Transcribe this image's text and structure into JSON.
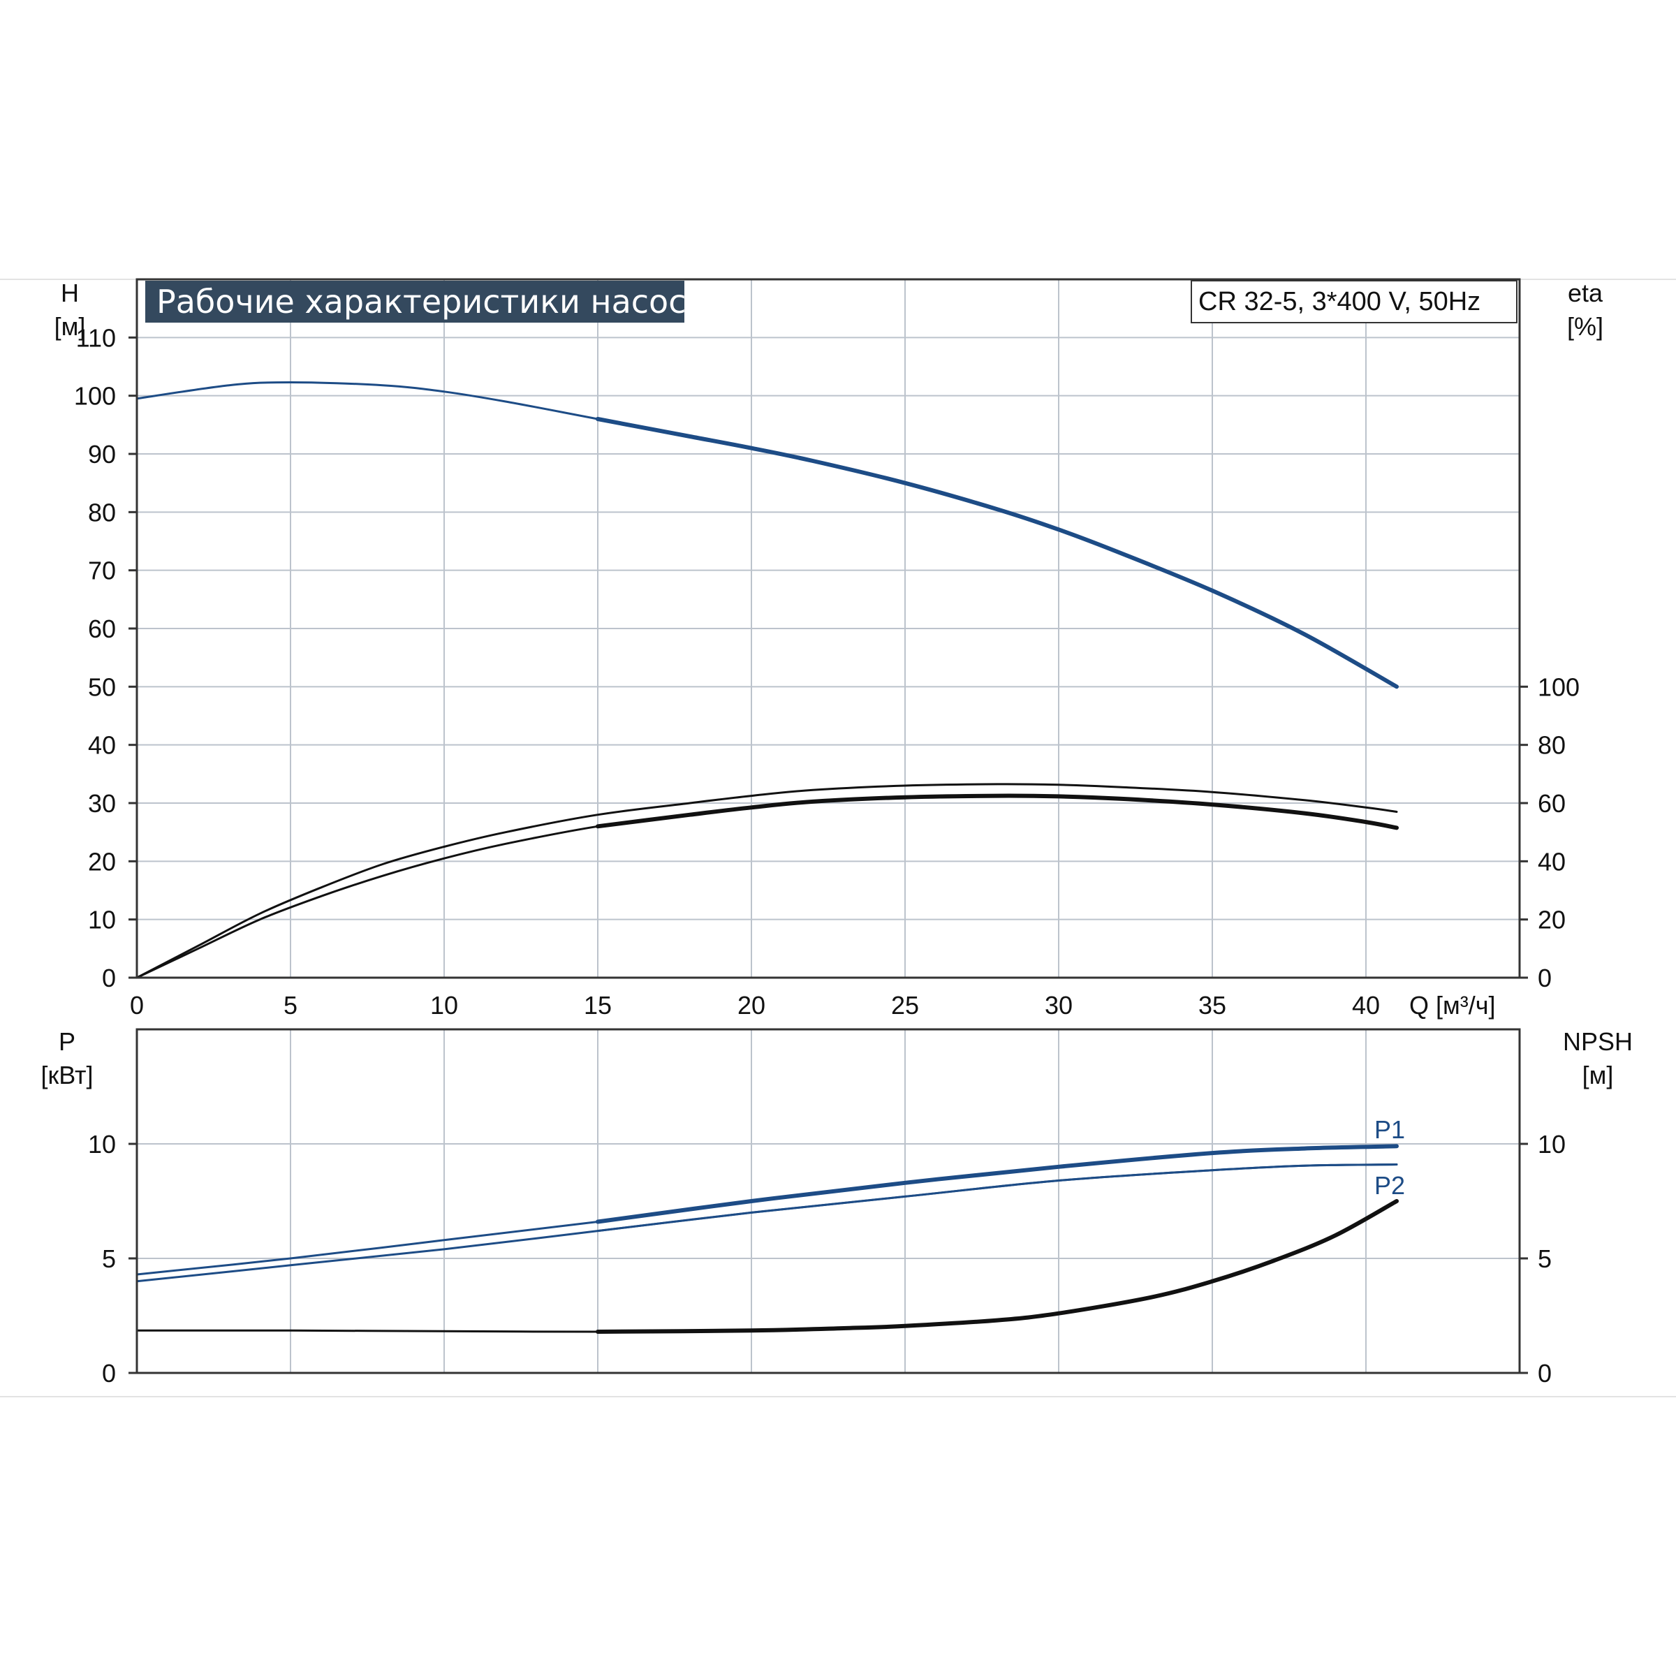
{
  "colors": {
    "grid": "#bcc3cc",
    "frame": "#333333",
    "head_curve": "#1d4c86",
    "power_curve": "#1d4c86",
    "efficiency_curve": "#111111",
    "npsh_curve": "#111111",
    "title_bg": "#34495e",
    "title_text": "#ffffff"
  },
  "chart_data": [
    {
      "type": "line",
      "title": "Рабочие характеристики насоса",
      "model_label": "CR 32-5, 3*400 V, 50Hz",
      "y_left_label": "H",
      "y_left_unit": "[м]",
      "y_right_label": "eta",
      "y_right_unit": "[%]",
      "x_label": "Q [м³/ч]",
      "xlim": [
        0,
        45
      ],
      "x_ticks": [
        0,
        5,
        10,
        15,
        20,
        25,
        30,
        35,
        40
      ],
      "ylim": [
        0,
        120
      ],
      "y_ticks": [
        0,
        10,
        20,
        30,
        40,
        50,
        60,
        70,
        80,
        90,
        100,
        110
      ],
      "y2lim": [
        0,
        240
      ],
      "y2_ticks": [
        0,
        20,
        40,
        60,
        80,
        100
      ],
      "grid": true,
      "series": [
        {
          "key": "head",
          "axis": "left",
          "x": [
            0,
            3,
            5,
            8,
            10,
            12,
            15,
            18,
            20,
            22,
            25,
            28,
            30,
            32,
            35,
            38,
            41
          ],
          "values": [
            99.5,
            101.8,
            102.3,
            101.8,
            100.7,
            99.0,
            96.0,
            93.0,
            91.0,
            88.8,
            85.0,
            80.5,
            77.0,
            73.0,
            66.5,
            59.0,
            50.0
          ]
        },
        {
          "key": "efficiency",
          "axis": "right",
          "x": [
            0,
            2,
            4,
            6,
            8,
            10,
            12,
            15,
            18,
            20,
            22,
            25,
            28,
            30,
            32,
            35,
            38,
            40,
            41
          ],
          "values": [
            0,
            10,
            20,
            28,
            35,
            41,
            46,
            52,
            56,
            58.5,
            60.5,
            62,
            62.5,
            62.3,
            61.5,
            59.5,
            56.5,
            53.5,
            51.5
          ]
        },
        {
          "key": "efficiency_upper",
          "axis": "right",
          "x": [
            0,
            2,
            4,
            6,
            8,
            10,
            12,
            15,
            18,
            20,
            22,
            25,
            28,
            30,
            32,
            35,
            38,
            40,
            41
          ],
          "values": [
            0,
            11,
            22,
            31,
            39,
            45,
            50,
            56,
            60,
            62.5,
            64.5,
            66,
            66.5,
            66.3,
            65.5,
            63.8,
            61,
            58.5,
            57
          ]
        }
      ]
    },
    {
      "type": "line",
      "y_left_label": "P",
      "y_left_unit": "[кВт]",
      "y_right_label": "NPSH",
      "y_right_unit": "[м]",
      "xlim": [
        0,
        45
      ],
      "ylim": [
        0,
        15
      ],
      "y_ticks": [
        0,
        5,
        10
      ],
      "y2lim": [
        0,
        15
      ],
      "y2_ticks": [
        0,
        5,
        10
      ],
      "grid": true,
      "series": [
        {
          "key": "p1",
          "name": "P1",
          "axis": "left",
          "x": [
            0,
            5,
            10,
            15,
            20,
            25,
            30,
            35,
            38,
            41
          ],
          "values": [
            4.3,
            5.0,
            5.8,
            6.6,
            7.5,
            8.3,
            9.0,
            9.6,
            9.8,
            9.9
          ]
        },
        {
          "key": "p2",
          "name": "P2",
          "axis": "left",
          "x": [
            0,
            5,
            10,
            15,
            20,
            25,
            30,
            35,
            38,
            41
          ],
          "values": [
            4.0,
            4.7,
            5.4,
            6.2,
            7.0,
            7.7,
            8.4,
            8.85,
            9.05,
            9.1
          ]
        },
        {
          "key": "npsh",
          "axis": "right",
          "x": [
            0,
            5,
            10,
            15,
            20,
            23,
            25,
            28,
            30,
            33,
            35,
            37,
            39,
            41
          ],
          "values": [
            1.85,
            1.85,
            1.82,
            1.8,
            1.85,
            1.95,
            2.05,
            2.3,
            2.6,
            3.3,
            4.0,
            4.9,
            6.0,
            7.5
          ]
        }
      ]
    }
  ]
}
